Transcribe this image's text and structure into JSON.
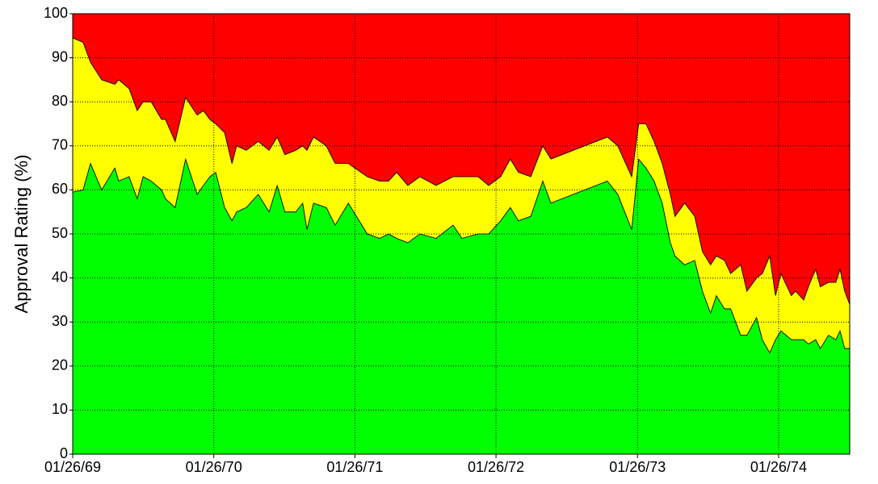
{
  "chart_data": {
    "type": "stacked-area",
    "y_label": "Approval Rating (%)",
    "x": [
      "01/26/69",
      "02/22/69",
      "03/13/69",
      "04/11/69",
      "05/15/69",
      "05/25/69",
      "06/21/69",
      "07/12/69",
      "07/27/69",
      "08/17/69",
      "09/13/69",
      "09/23/69",
      "10/18/69",
      "11/14/69",
      "12/14/69",
      "12/30/69",
      "01/16/70",
      "01/31/70",
      "02/23/70",
      "03/14/70",
      "03/26/70",
      "04/20/70",
      "05/21/70",
      "06/18/70",
      "07/09/70",
      "07/29/70",
      "08/26/70",
      "09/13/70",
      "09/24/70",
      "10/11/70",
      "11/13/70",
      "12/06/70",
      "01/09/71",
      "02/27/71",
      "03/31/71",
      "04/23/71",
      "05/14/71",
      "06/12/71",
      "07/13/71",
      "08/24/71",
      "10/07/71",
      "10/30/71",
      "12/11/71",
      "01/07/72",
      "02/07/72",
      "03/03/72",
      "03/24/72",
      "04/25/72",
      "05/26/72",
      "06/16/72",
      "11/09/72",
      "12/06/72",
      "01/11/73",
      "01/29/73",
      "02/17/73",
      "03/10/73",
      "03/31/73",
      "04/21/73",
      "05/03/73",
      "05/28/73",
      "06/23/73",
      "07/13/73",
      "08/03/73",
      "08/18/73",
      "09/08/73",
      "09/24/73",
      "10/20/73",
      "11/05/73",
      "11/30/73",
      "12/15/73",
      "01/03/74",
      "01/18/74",
      "02/01/74",
      "02/28/74",
      "03/11/74",
      "04/01/74",
      "04/13/74",
      "05/02/74",
      "05/14/74",
      "06/04/74",
      "06/23/74",
      "07/04/74",
      "07/16/74",
      "07/29/74"
    ],
    "series": [
      {
        "color": "#00ff00",
        "values": [
          59.5,
          60,
          66,
          60,
          65,
          62,
          63,
          58,
          63,
          62,
          60,
          58,
          56,
          67,
          59,
          61,
          63,
          64,
          56,
          53,
          55,
          56,
          59,
          55,
          61,
          55,
          55,
          57,
          51,
          57,
          56,
          52,
          57,
          50,
          49,
          50,
          49,
          48,
          50,
          49,
          52,
          49,
          50,
          50,
          53,
          56,
          53,
          54,
          62,
          57,
          62,
          59,
          51,
          67,
          65,
          62,
          57,
          48,
          45,
          43,
          44,
          37,
          32,
          36,
          33,
          33,
          27,
          27,
          31,
          26,
          23,
          26,
          28,
          26,
          26,
          26,
          25,
          26,
          24,
          27,
          26,
          28,
          24,
          24
        ]
      },
      {
        "color": "#ffff00",
        "values": [
          35,
          33.5,
          23,
          25,
          19,
          23,
          20,
          20,
          17,
          18,
          16,
          18,
          15,
          14,
          18,
          17,
          13,
          11,
          17,
          13,
          15,
          13,
          12,
          14,
          11,
          13,
          14,
          13,
          18,
          15,
          14,
          14,
          9,
          13,
          13,
          12,
          15,
          13,
          13,
          12,
          11,
          14,
          13,
          11,
          10,
          11,
          11,
          9,
          8,
          10,
          10,
          11,
          12,
          8,
          10,
          9,
          9,
          11,
          9,
          14,
          10,
          9,
          11,
          9,
          11,
          8,
          16,
          10,
          9,
          15,
          22,
          10,
          13,
          10,
          11,
          9,
          13,
          16,
          14,
          12,
          13,
          14,
          13,
          10
        ]
      },
      {
        "color": "#ff0000",
        "values": [
          5.5,
          6.5,
          11,
          15,
          16,
          15,
          17,
          22,
          20,
          20,
          24,
          24,
          29,
          19,
          23,
          22,
          24,
          25,
          27,
          34,
          30,
          31,
          29,
          31,
          28,
          32,
          31,
          30,
          31,
          28,
          30,
          34,
          34,
          37,
          38,
          38,
          36,
          39,
          37,
          39,
          37,
          37,
          37,
          39,
          37,
          33,
          36,
          37,
          30,
          33,
          28,
          30,
          37,
          25,
          25,
          29,
          34,
          41,
          46,
          43,
          46,
          54,
          57,
          55,
          56,
          59,
          57,
          63,
          60,
          59,
          55,
          64,
          59,
          64,
          63,
          65,
          62,
          58,
          62,
          61,
          61,
          58,
          63,
          66
        ]
      }
    ],
    "xlim": [
      "01/26/69",
      "07/29/74"
    ],
    "xticks": [
      "01/26/69",
      "01/26/70",
      "01/26/71",
      "01/26/72",
      "01/26/73",
      "01/26/74"
    ],
    "ylim": [
      0,
      100
    ],
    "yticks": [
      0,
      10,
      20,
      30,
      40,
      50,
      60,
      70,
      80,
      90,
      100
    ],
    "grid": true
  }
}
